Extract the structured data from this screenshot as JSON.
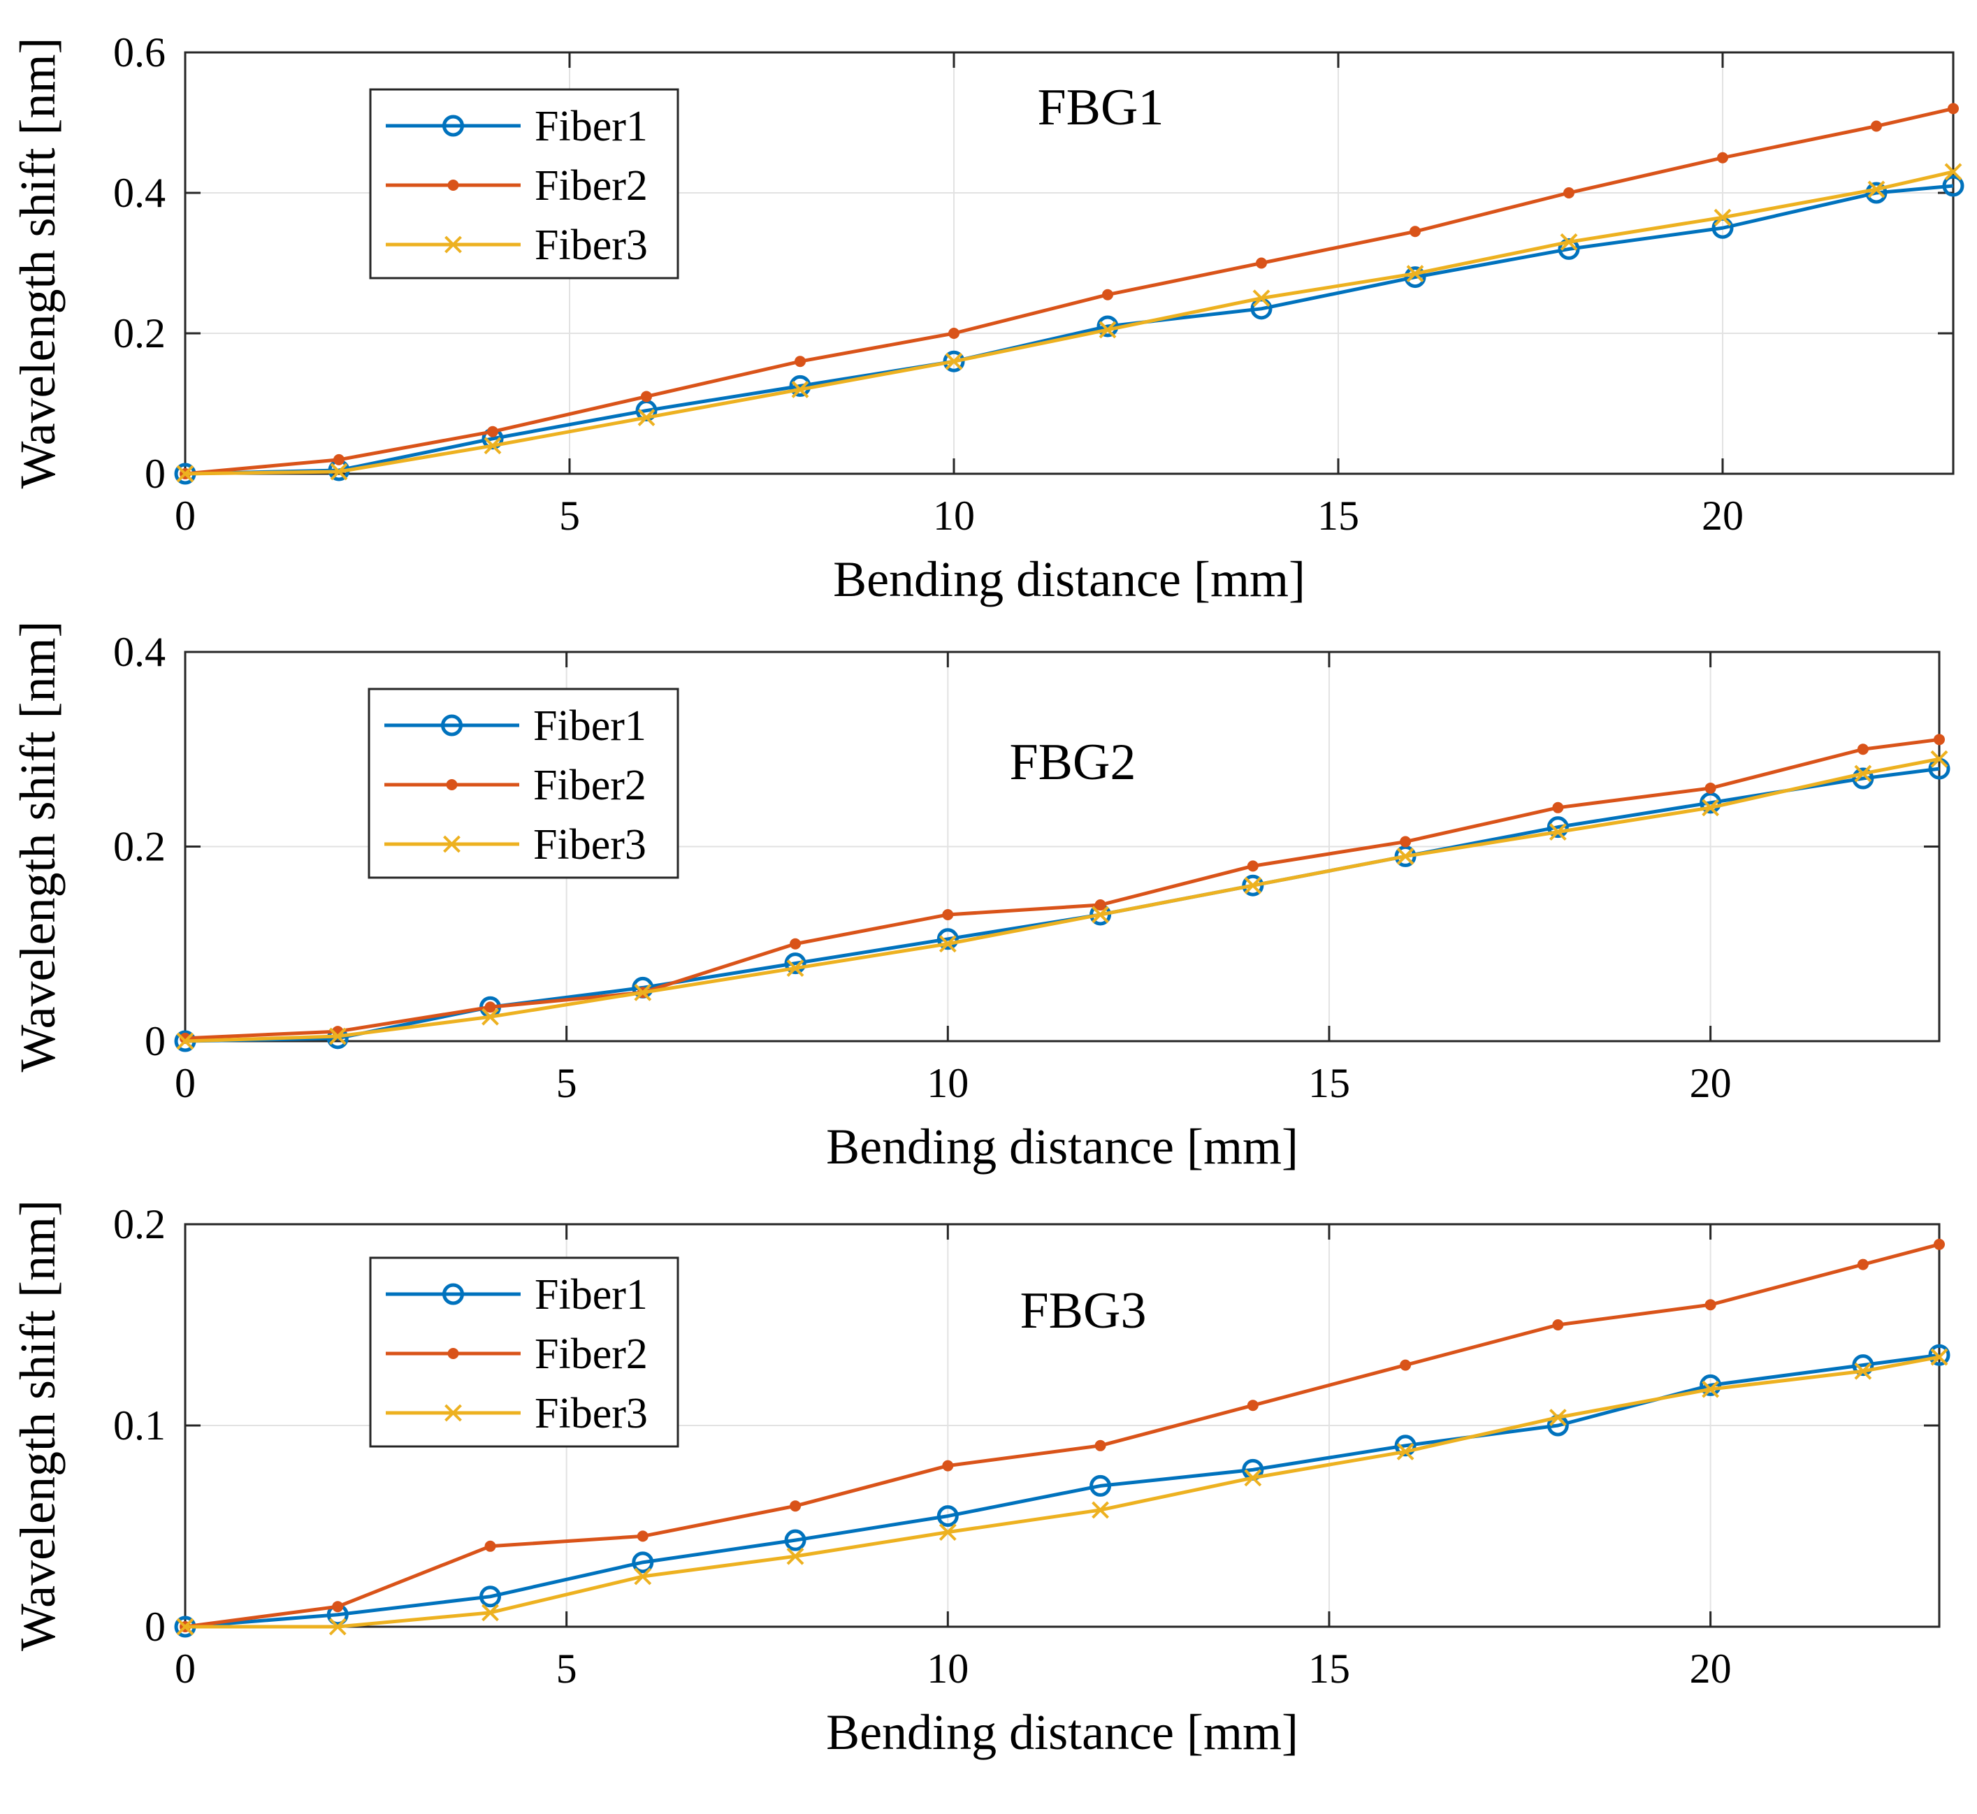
{
  "chart_data": [
    {
      "type": "line",
      "title": "FBG1",
      "xlabel": "Bending distance [mm]",
      "ylabel": "Wavelength shift [nm]",
      "xlim": [
        0,
        23
      ],
      "ylim": [
        0,
        0.6
      ],
      "xticks": [
        0,
        5,
        10,
        15,
        20
      ],
      "yticks": [
        0,
        0.2,
        0.4,
        0.6
      ],
      "grid": true,
      "legend_position": "top-left",
      "x": [
        0,
        2,
        4,
        6,
        8,
        10,
        12,
        14,
        16,
        18,
        20,
        22,
        23
      ],
      "series": [
        {
          "name": "Fiber1",
          "marker": "circle",
          "color": "#0072BD",
          "values": [
            0,
            0.005,
            0.05,
            0.09,
            0.125,
            0.16,
            0.21,
            0.235,
            0.28,
            0.32,
            0.35,
            0.4,
            0.41
          ]
        },
        {
          "name": "Fiber2",
          "marker": "dot",
          "color": "#D95319",
          "values": [
            0,
            0.02,
            0.06,
            0.11,
            0.16,
            0.2,
            0.255,
            0.3,
            0.345,
            0.4,
            0.45,
            0.495,
            0.52
          ]
        },
        {
          "name": "Fiber3",
          "marker": "x",
          "color": "#EDB120",
          "values": [
            0,
            0.003,
            0.04,
            0.08,
            0.12,
            0.16,
            0.205,
            0.25,
            0.285,
            0.33,
            0.365,
            0.405,
            0.43
          ]
        }
      ]
    },
    {
      "type": "line",
      "title": "FBG2",
      "xlabel": "Bending distance [mm]",
      "ylabel": "Wavelength shift [nm]",
      "xlim": [
        0,
        23
      ],
      "ylim": [
        0,
        0.4
      ],
      "xticks": [
        0,
        5,
        10,
        15,
        20
      ],
      "yticks": [
        0,
        0.2,
        0.4
      ],
      "grid": true,
      "legend_position": "top-left",
      "x": [
        0,
        2,
        4,
        6,
        8,
        10,
        12,
        14,
        16,
        18,
        20,
        22,
        23
      ],
      "series": [
        {
          "name": "Fiber1",
          "marker": "circle",
          "color": "#0072BD",
          "values": [
            0,
            0.003,
            0.035,
            0.055,
            0.08,
            0.105,
            0.13,
            0.16,
            0.19,
            0.22,
            0.245,
            0.27,
            0.28
          ]
        },
        {
          "name": "Fiber2",
          "marker": "dot",
          "color": "#D95319",
          "values": [
            0.003,
            0.01,
            0.035,
            0.05,
            0.1,
            0.13,
            0.14,
            0.18,
            0.205,
            0.24,
            0.26,
            0.3,
            0.31
          ]
        },
        {
          "name": "Fiber3",
          "marker": "x",
          "color": "#EDB120",
          "values": [
            0,
            0.005,
            0.025,
            0.05,
            0.075,
            0.1,
            0.13,
            0.16,
            0.19,
            0.215,
            0.24,
            0.275,
            0.29
          ]
        }
      ]
    },
    {
      "type": "line",
      "title": "FBG3",
      "xlabel": "Bending distance [mm]",
      "ylabel": "Wavelength shift [nm]",
      "xlim": [
        0,
        23
      ],
      "ylim": [
        0,
        0.2
      ],
      "xticks": [
        0,
        5,
        10,
        15,
        20
      ],
      "yticks": [
        0,
        0.1,
        0.2
      ],
      "grid": true,
      "legend_position": "top-left",
      "x": [
        0,
        2,
        4,
        6,
        8,
        10,
        12,
        14,
        16,
        18,
        20,
        22,
        23
      ],
      "series": [
        {
          "name": "Fiber1",
          "marker": "circle",
          "color": "#0072BD",
          "values": [
            0,
            0.006,
            0.015,
            0.032,
            0.043,
            0.055,
            0.07,
            0.078,
            0.09,
            0.1,
            0.12,
            0.13,
            0.135
          ]
        },
        {
          "name": "Fiber2",
          "marker": "dot",
          "color": "#D95319",
          "values": [
            0,
            0.01,
            0.04,
            0.045,
            0.06,
            0.08,
            0.09,
            0.11,
            0.13,
            0.15,
            0.16,
            0.18,
            0.19
          ]
        },
        {
          "name": "Fiber3",
          "marker": "x",
          "color": "#EDB120",
          "values": [
            0,
            0,
            0.007,
            0.025,
            0.035,
            0.047,
            0.058,
            0.074,
            0.087,
            0.104,
            0.118,
            0.127,
            0.134
          ]
        }
      ]
    }
  ]
}
